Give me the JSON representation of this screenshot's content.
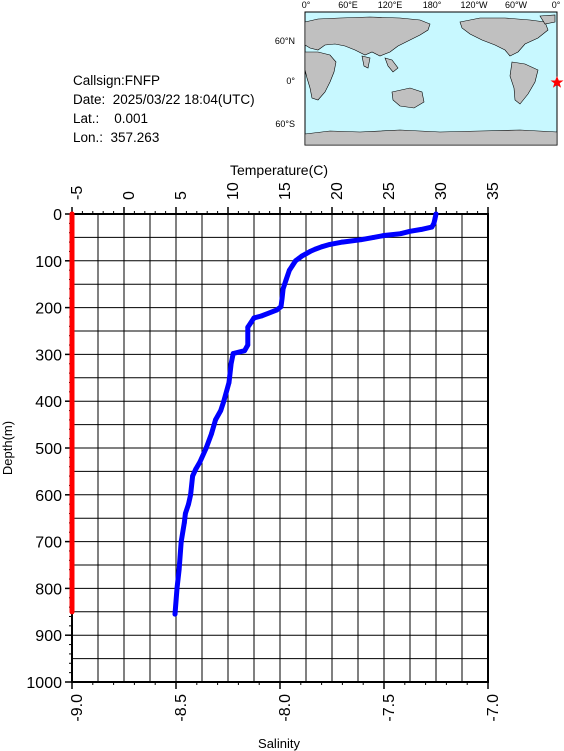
{
  "station": {
    "callsign": "Callsign:FNFP",
    "date": "Date:  2025/03/22 18:04(UTC)",
    "lat": "Lat.:    0.001",
    "lon": "Lon.:  357.263"
  },
  "map": {
    "top_labels": [
      "0°",
      "60°E",
      "120°E",
      "180°",
      "120°W",
      "60°W",
      "0°"
    ],
    "right_labels": [
      "60°N",
      "0°",
      "60°S"
    ],
    "ocean_color": "#c8f8ff",
    "land_color": "#c0c0c0",
    "marker_color": "#ff0000",
    "marker_icon": "star-icon"
  },
  "chart_data": {
    "type": "line",
    "title": "",
    "top_axis": {
      "label": "Temperature(C)",
      "range": [
        -5,
        35
      ],
      "ticks": [
        "-5",
        "0",
        "5",
        "10",
        "15",
        "20",
        "25",
        "30",
        "35"
      ]
    },
    "bottom_axis": {
      "label": "Salinity",
      "range": [
        -9.0,
        -7.0
      ],
      "ticks": [
        "-9.0",
        "-8.5",
        "-8.0",
        "-7.5",
        "-7.0"
      ]
    },
    "y_axis": {
      "label": "Depth(m)",
      "range": [
        0,
        1000
      ],
      "inverted": true,
      "ticks": [
        "0",
        "100",
        "200",
        "300",
        "400",
        "500",
        "600",
        "700",
        "800",
        "900",
        "1000"
      ]
    },
    "grid": true,
    "series": [
      {
        "axis": "temperature",
        "color": "#0000ff",
        "depth": [
          0,
          10,
          20,
          28,
          33,
          37,
          42,
          46,
          50,
          55,
          60,
          65,
          70,
          75,
          80,
          85,
          90,
          95,
          100,
          110,
          120,
          140,
          160,
          180,
          198,
          205,
          212,
          218,
          222,
          232,
          242,
          280,
          292,
          298,
          320,
          360,
          400,
          420,
          440,
          470,
          500,
          530,
          545,
          560,
          600,
          620,
          640,
          660,
          700,
          760,
          800,
          855
        ],
        "values": [
          30.0,
          29.9,
          29.8,
          29.6,
          28.6,
          27.5,
          26.6,
          25.0,
          24.0,
          22.8,
          21.0,
          19.8,
          19.0,
          18.4,
          17.9,
          17.5,
          17.1,
          16.8,
          16.5,
          16.2,
          15.9,
          15.6,
          15.3,
          15.2,
          15.1,
          14.7,
          13.9,
          13.2,
          12.5,
          12.2,
          11.9,
          11.9,
          11.6,
          10.5,
          10.3,
          10.1,
          9.6,
          9.3,
          8.8,
          8.4,
          7.9,
          7.3,
          6.9,
          6.6,
          6.4,
          6.2,
          5.9,
          5.8,
          5.5,
          5.3,
          5.1,
          4.9
        ]
      },
      {
        "axis": "salinity",
        "color": "#ff0000",
        "depth": [
          0,
          100,
          200,
          300,
          400,
          500,
          600,
          700,
          800,
          850
        ],
        "values": [
          -9.0,
          -9.0,
          -9.0,
          -9.0,
          -9.0,
          -9.0,
          -9.0,
          -9.0,
          -9.0,
          -9.0
        ]
      }
    ]
  }
}
